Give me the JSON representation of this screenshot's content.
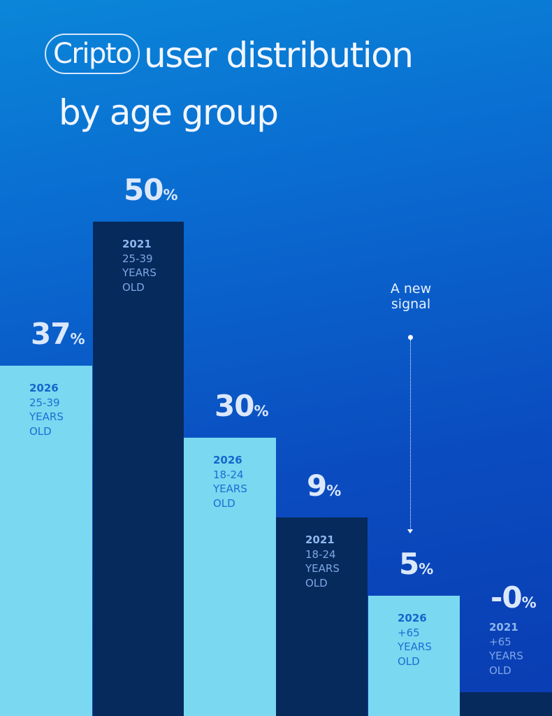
{
  "title": {
    "highlight": "Cripto",
    "line1_rest": "user distribution",
    "line2": "by age group"
  },
  "annotation": {
    "line1": "A new",
    "line2": "signal"
  },
  "colors": {
    "year_2026": "#7ad8f0",
    "year_2021": "#062a5c",
    "background": "#0a5ac8"
  },
  "chart_data": {
    "type": "bar",
    "title": "Cripto user distribution by age group",
    "unit": "%",
    "bars": [
      {
        "year": "2026",
        "age": "25-39",
        "l1": "YEARS",
        "l2": "OLD",
        "value": 37,
        "value_label": "37"
      },
      {
        "year": "2021",
        "age": "25-39",
        "l1": "YEARS",
        "l2": "OLD",
        "value": 50,
        "value_label": "50"
      },
      {
        "year": "2026",
        "age": "18-24",
        "l1": "YEARS",
        "l2": "OLD",
        "value": 30,
        "value_label": "30"
      },
      {
        "year": "2021",
        "age": "18-24",
        "l1": "YEARS",
        "l2": "OLD",
        "value": 9,
        "value_label": "9"
      },
      {
        "year": "2026",
        "age": "+65",
        "l1": "YEARS",
        "l2": "OLD",
        "value": 5,
        "value_label": "5"
      },
      {
        "year": "2021",
        "age": "+65",
        "l1": "YEARS",
        "l2": "OLD",
        "value": 0,
        "value_label": "-0"
      }
    ]
  }
}
